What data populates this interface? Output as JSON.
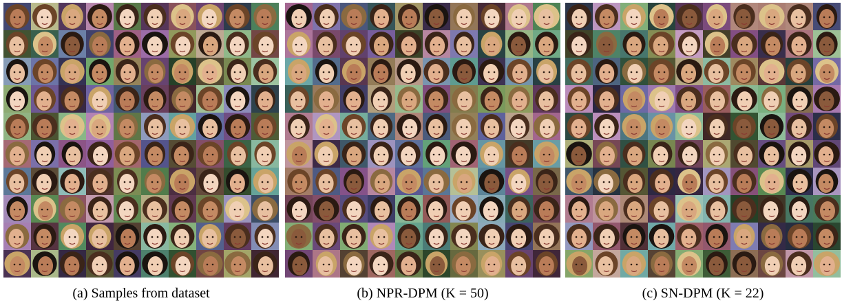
{
  "figure": {
    "panels": [
      {
        "caption": "(a) Samples from dataset"
      },
      {
        "caption": "(b) NPR-DPM (K = 50)"
      },
      {
        "caption": "(c) SN-DPM (K = 22)"
      }
    ]
  }
}
